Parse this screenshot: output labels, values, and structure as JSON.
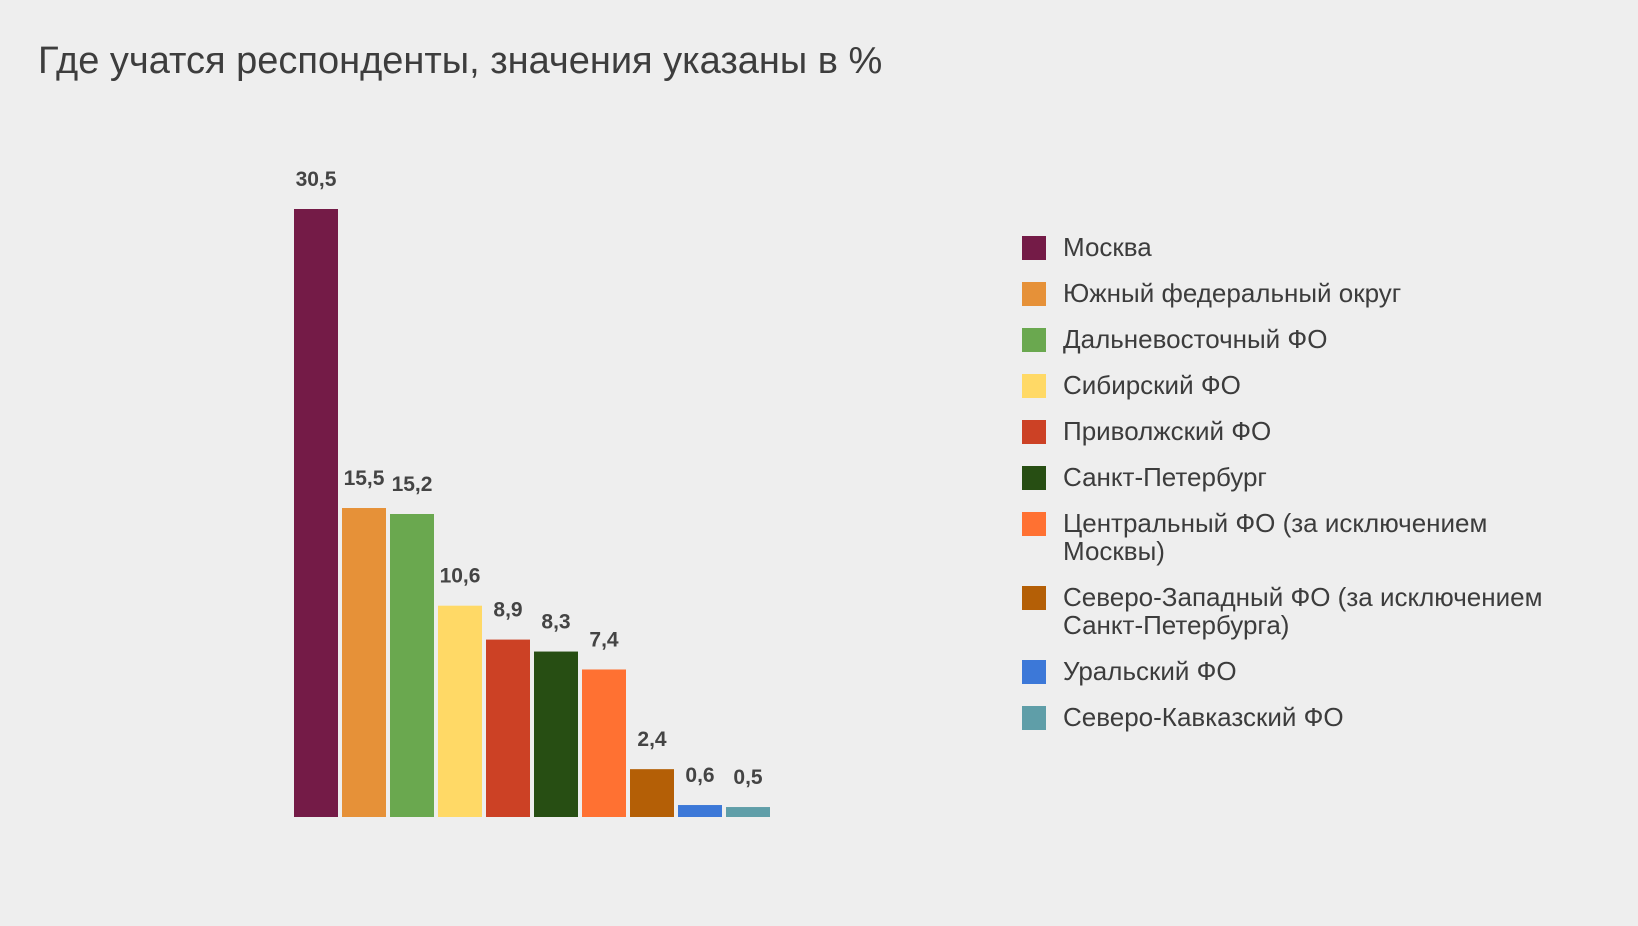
{
  "chart_data": {
    "type": "bar",
    "title": "Где учатся респонденты, значения указаны в %",
    "categories": [
      "Москва",
      "Южный федеральный округ",
      "Дальневосточный ФО",
      "Сибирский ФО",
      "Приволжский ФО",
      "Санкт-Петербург",
      "Центральный ФО (за исключением Москвы)",
      "Северо-Западный ФО (за исключением Санкт-Петербурга)",
      "Уральский ФО",
      "Северо-Кавказский ФО"
    ],
    "values": [
      30.5,
      15.5,
      15.2,
      10.6,
      8.9,
      8.3,
      7.4,
      2.4,
      0.6,
      0.5
    ],
    "value_labels": [
      "30,5",
      "15,5",
      "15,2",
      "10,6",
      "8,9",
      "8,3",
      "7,4",
      "2,4",
      "0,6",
      "0,5"
    ],
    "colors": [
      "#741b47",
      "#e69138",
      "#6aa84f",
      "#ffd966",
      "#cc4125",
      "#274e13",
      "#ff7132",
      "#b45f06",
      "#3c78d8",
      "#5f9ea8"
    ],
    "xlabel": "",
    "ylabel": "",
    "ylim": [
      0,
      30.5
    ],
    "grid": false,
    "legend_position": "right"
  }
}
